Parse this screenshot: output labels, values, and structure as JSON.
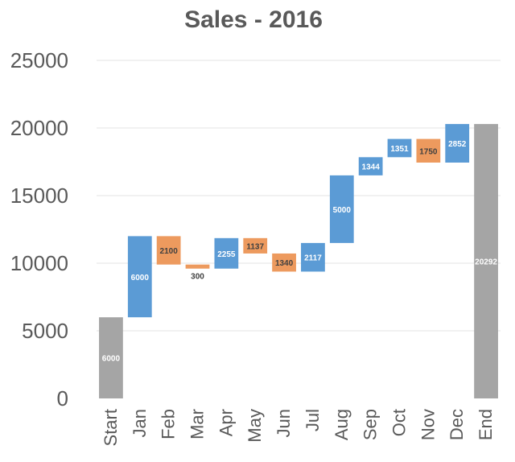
{
  "chart_data": {
    "type": "bar",
    "subtype": "waterfall",
    "title": "Sales - 2016",
    "xlabel": "",
    "ylabel": "",
    "ylim": [
      0,
      25000
    ],
    "yticks": [
      0,
      5000,
      10000,
      15000,
      20000,
      25000
    ],
    "grid": true,
    "legend": "none",
    "categories": [
      "Start",
      "Jan",
      "Feb",
      "Mar",
      "Apr",
      "May",
      "Jun",
      "Jul",
      "Aug",
      "Sep",
      "Oct",
      "Nov",
      "Dec",
      "End"
    ],
    "kinds": [
      "total",
      "increase",
      "decrease",
      "decrease",
      "increase",
      "decrease",
      "decrease",
      "increase",
      "increase",
      "increase",
      "increase",
      "decrease",
      "increase",
      "total"
    ],
    "values": [
      6000,
      6000,
      2100,
      300,
      2255,
      1137,
      1340,
      2117,
      5000,
      1344,
      1351,
      1750,
      2852,
      20292
    ],
    "labels": [
      "6000",
      "6000",
      "2100",
      "300",
      "2255",
      "1137",
      "1340",
      "2117",
      "5000",
      "1344",
      "1351",
      "1750",
      "2852",
      "20292"
    ],
    "colors": {
      "total": "#a5a5a5",
      "increase": "#5b9bd5",
      "decrease": "#ed9a5e",
      "label_on_increase": "#ffffff",
      "label_on_total": "#ffffff",
      "label_on_decrease": "#404040"
    }
  }
}
